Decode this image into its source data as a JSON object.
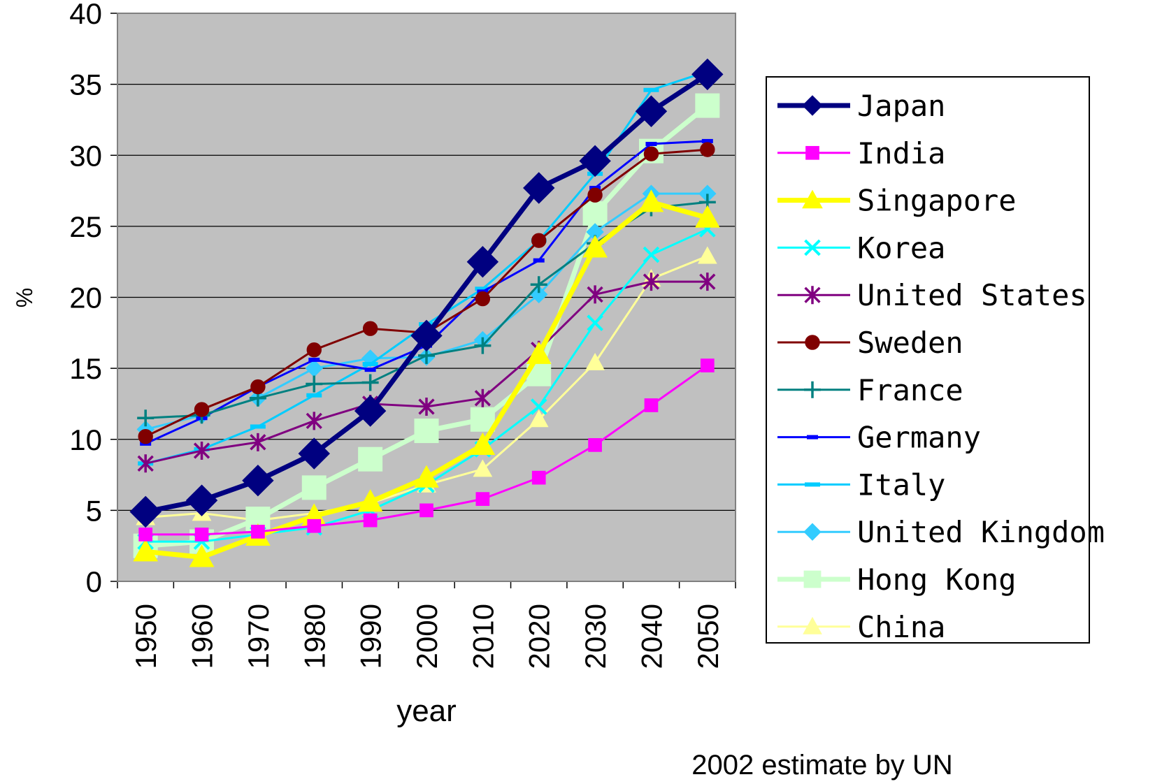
{
  "chart_data": {
    "type": "line",
    "title": "",
    "xlabel": "year",
    "ylabel": "%",
    "ylim": [
      0,
      40
    ],
    "yticks": [
      "0",
      "5",
      "10",
      "15",
      "20",
      "25",
      "30",
      "35",
      "40"
    ],
    "categories": [
      "1950",
      "1960",
      "1970",
      "1980",
      "1990",
      "2000",
      "2010",
      "2020",
      "2030",
      "2040",
      "2050"
    ],
    "grid": "horizontal",
    "legend_position": "right",
    "note": "2002 estimate by UN",
    "plot_background": "#c0c0c0",
    "series": [
      {
        "name": "Japan",
        "color": "#000080",
        "marker": "diamond",
        "values": [
          4.9,
          5.7,
          7.1,
          9.0,
          12.0,
          17.3,
          22.5,
          27.7,
          29.6,
          33.1,
          35.7
        ]
      },
      {
        "name": "India",
        "color": "#ff00ff",
        "marker": "square",
        "values": [
          3.3,
          3.3,
          3.5,
          3.9,
          4.3,
          5.0,
          5.8,
          7.3,
          9.6,
          12.4,
          15.2
        ]
      },
      {
        "name": "Singapore",
        "color": "#ffff00",
        "marker": "triangle",
        "values": [
          2.1,
          1.7,
          3.2,
          4.6,
          5.6,
          7.3,
          9.6,
          16.0,
          23.5,
          26.7,
          25.6
        ]
      },
      {
        "name": "Korea",
        "color": "#00ffff",
        "marker": "x",
        "values": [
          2.8,
          2.8,
          3.3,
          3.8,
          5.0,
          6.8,
          9.3,
          12.3,
          18.2,
          23.0,
          24.8
        ]
      },
      {
        "name": "United States",
        "color": "#800080",
        "marker": "star",
        "values": [
          8.3,
          9.2,
          9.8,
          11.3,
          12.5,
          12.3,
          12.9,
          16.3,
          20.2,
          21.1,
          21.1
        ]
      },
      {
        "name": "Sweden",
        "color": "#800000",
        "marker": "circle",
        "values": [
          10.2,
          12.1,
          13.7,
          16.3,
          17.8,
          17.5,
          19.9,
          24.0,
          27.2,
          30.1,
          30.4
        ]
      },
      {
        "name": "France",
        "color": "#008080",
        "marker": "plus",
        "values": [
          11.5,
          11.7,
          12.9,
          13.9,
          14.0,
          15.9,
          16.6,
          20.9,
          23.8,
          26.3,
          26.7
        ]
      },
      {
        "name": "Germany",
        "color": "#0000ff",
        "marker": "dash",
        "values": [
          9.7,
          11.5,
          13.7,
          15.6,
          14.9,
          16.6,
          20.4,
          22.6,
          27.7,
          30.8,
          31.0
        ]
      },
      {
        "name": "Italy",
        "color": "#00ccff",
        "marker": "dash",
        "values": [
          8.3,
          9.3,
          10.9,
          13.1,
          15.3,
          18.1,
          20.6,
          24.0,
          28.7,
          34.6,
          35.9
        ]
      },
      {
        "name": "United Kingdom",
        "color": "#33ccff",
        "marker": "diamond",
        "values": [
          10.7,
          11.7,
          12.9,
          15.0,
          15.7,
          15.8,
          17.0,
          20.2,
          24.6,
          27.3,
          27.3
        ]
      },
      {
        "name": "Hong Kong",
        "color": "#ccffcc",
        "marker": "square",
        "values": [
          2.5,
          2.8,
          4.4,
          6.6,
          8.6,
          10.6,
          11.4,
          14.6,
          25.9,
          30.3,
          33.5
        ]
      },
      {
        "name": "China",
        "color": "#ffff99",
        "marker": "triangle",
        "values": [
          4.5,
          4.8,
          4.3,
          4.8,
          5.5,
          6.8,
          7.9,
          11.4,
          15.4,
          21.3,
          22.9
        ]
      }
    ]
  }
}
